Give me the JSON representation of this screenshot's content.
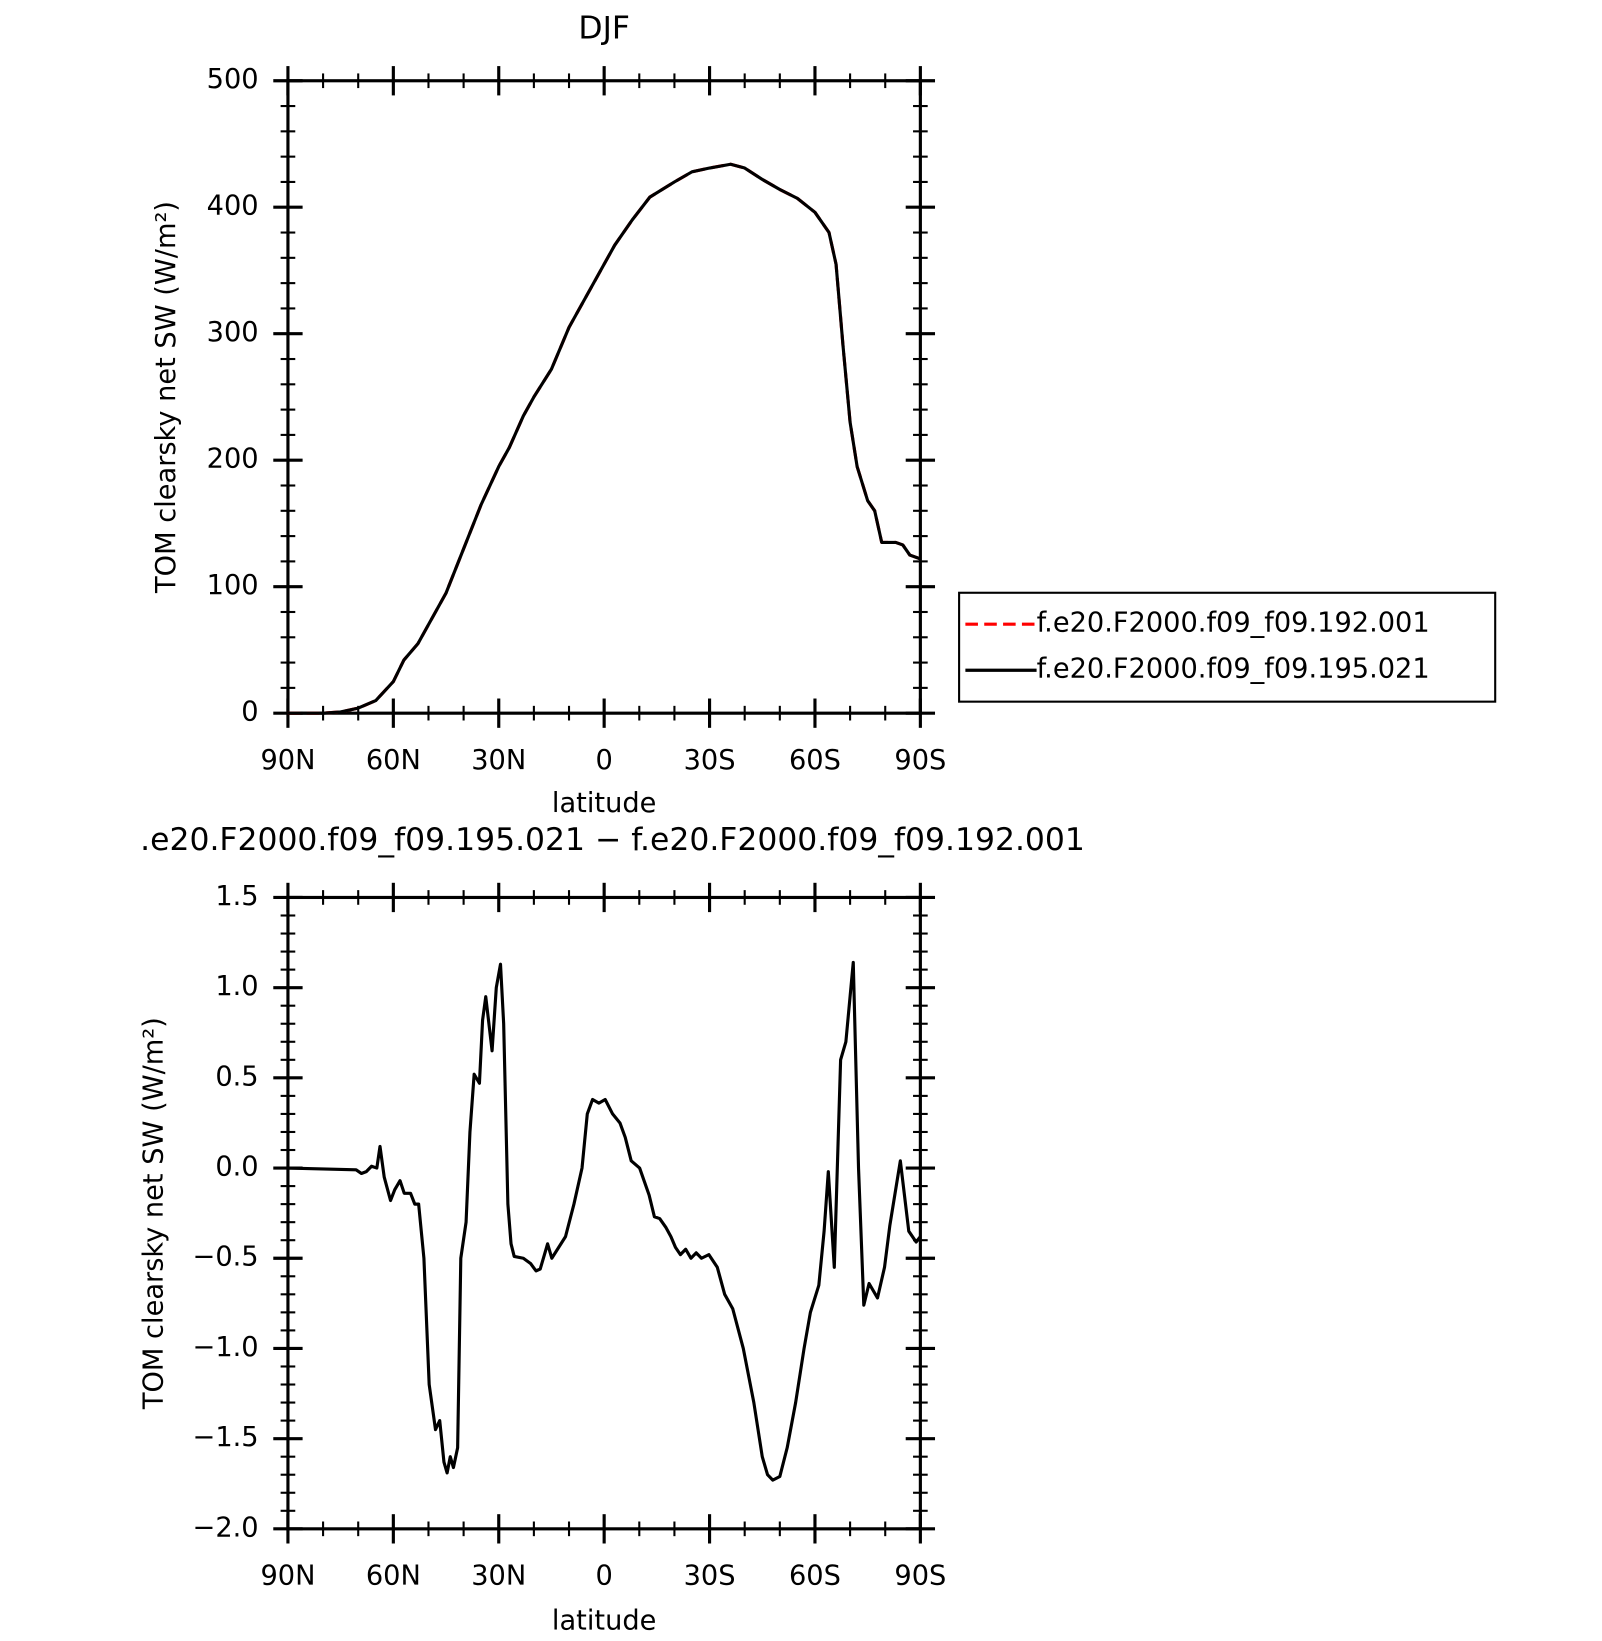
{
  "chart_data": [
    {
      "type": "line",
      "title": "DJF",
      "xlabel": "latitude",
      "ylabel": "TOM clearsky net SW (W/m²)",
      "x": [
        90,
        80,
        75,
        70,
        65,
        60,
        57,
        53,
        50,
        45,
        40,
        35,
        30,
        27,
        23,
        20,
        15,
        10,
        5,
        0,
        -3,
        -8,
        -13,
        -20,
        -25,
        -30,
        -36,
        -40,
        -45,
        -50,
        -55,
        -60,
        -64,
        -66,
        -68,
        -70,
        -72,
        -75,
        -77,
        -79,
        -83,
        -85,
        -87,
        -90
      ],
      "series": [
        {
          "name": "f.e20.F2000.f09_f09.192.001",
          "color": "#ff0000",
          "linestyle": "dashed",
          "values": [
            0,
            0,
            1,
            4,
            10,
            25,
            42,
            55,
            70,
            95,
            130,
            165,
            195,
            210,
            235,
            250,
            272,
            305,
            330,
            355,
            370,
            390,
            408,
            420,
            428,
            431,
            434,
            431,
            422,
            414,
            407,
            396,
            380,
            355,
            290,
            230,
            195,
            168,
            160,
            135,
            135,
            133,
            125,
            122
          ]
        },
        {
          "name": "f.e20.F2000.f09_f09.195.021",
          "color": "#000000",
          "linestyle": "solid",
          "values": [
            0,
            0,
            1,
            4,
            10,
            25,
            42,
            55,
            70,
            95,
            130,
            165,
            195,
            210,
            235,
            250,
            272,
            305,
            330,
            355,
            370,
            390,
            408,
            420,
            428,
            431,
            434,
            431,
            422,
            414,
            407,
            396,
            380,
            355,
            290,
            230,
            195,
            168,
            160,
            135,
            135,
            133,
            125,
            122
          ]
        }
      ],
      "xlim": [
        90,
        -90
      ],
      "xticks": [
        {
          "value": 90,
          "label": "90N"
        },
        {
          "value": 60,
          "label": "60N"
        },
        {
          "value": 30,
          "label": "30N"
        },
        0,
        {
          "value": -30,
          "label": "30S"
        },
        {
          "value": -60,
          "label": "60S"
        },
        {
          "value": -90,
          "label": "90S"
        }
      ],
      "ylim": [
        0,
        500
      ],
      "yticks": [
        0,
        100,
        200,
        300,
        400,
        500
      ],
      "legend": "right"
    },
    {
      "type": "line",
      "title": ".e20.F2000.f09_f09.195.021 − f.e20.F2000.f09_f09.192.001",
      "xlabel": "latitude",
      "ylabel": "TOM clearsky net SW (W/m²)",
      "x": [
        90,
        70.6,
        69.1,
        67.7,
        66.2,
        64.7,
        63.8,
        62.6,
        60.8,
        59.6,
        58.1,
        56.9,
        55.1,
        53.9,
        52.8,
        51.3,
        49.8,
        48,
        46.8,
        45.6,
        44.7,
        43.8,
        42.9,
        41.7,
        40.8,
        39.3,
        38.2,
        37,
        35.5,
        34.6,
        33.7,
        31.9,
        30.7,
        29.5,
        28.6,
        27.4,
        26.5,
        25.6,
        23,
        20.9,
        19.4,
        18.2,
        17,
        16.1,
        14.9,
        11,
        8.6,
        6.3,
        4.8,
        3.3,
        1.5,
        -0.3,
        -2.4,
        -4.5,
        -6,
        -7.7,
        -10.1,
        -12.8,
        -14.3,
        -15.8,
        -17.6,
        -19,
        -20.3,
        -21.7,
        -23.2,
        -24.7,
        -26.2,
        -27.7,
        -29.8,
        -32.2,
        -34.3,
        -36.6,
        -39.6,
        -42.6,
        -45,
        -46.5,
        -48,
        -50,
        -52.1,
        -54.5,
        -56.9,
        -58.7,
        -61.1,
        -62.6,
        -63.8,
        -65.5,
        -67.3,
        -68.8,
        -70.9,
        -72.4,
        -73.9,
        -75.4,
        -77.8,
        -79.8,
        -81.3,
        -84.3,
        -86.7,
        -88.8,
        -90
      ],
      "values": [
        0,
        -0.01,
        -0.03,
        -0.02,
        0.01,
        0,
        0.12,
        -0.05,
        -0.18,
        -0.12,
        -0.07,
        -0.14,
        -0.14,
        -0.2,
        -0.2,
        -0.5,
        -1.2,
        -1.45,
        -1.4,
        -1.63,
        -1.69,
        -1.6,
        -1.66,
        -1.55,
        -0.5,
        -0.3,
        0.2,
        0.52,
        0.47,
        0.82,
        0.95,
        0.65,
        1.0,
        1.13,
        0.8,
        -0.2,
        -0.42,
        -0.49,
        -0.5,
        -0.53,
        -0.57,
        -0.56,
        -0.48,
        -0.42,
        -0.5,
        -0.38,
        -0.2,
        0,
        0.3,
        0.38,
        0.36,
        0.38,
        0.3,
        0.25,
        0.17,
        0.04,
        0,
        -0.15,
        -0.27,
        -0.28,
        -0.33,
        -0.38,
        -0.44,
        -0.48,
        -0.45,
        -0.5,
        -0.47,
        -0.5,
        -0.48,
        -0.55,
        -0.7,
        -0.78,
        -1.0,
        -1.3,
        -1.6,
        -1.7,
        -1.73,
        -1.71,
        -1.55,
        -1.3,
        -1.0,
        -0.8,
        -0.65,
        -0.35,
        -0.02,
        -0.55,
        0.6,
        0.7,
        1.14,
        0,
        -0.76,
        -0.64,
        -0.72,
        -0.55,
        -0.32,
        0.04,
        -0.35,
        -0.41,
        -0.38
      ],
      "color": "#000000",
      "xlim": [
        90,
        -90
      ],
      "xticks": [
        {
          "value": 90,
          "label": "90N"
        },
        {
          "value": 60,
          "label": "60N"
        },
        {
          "value": 30,
          "label": "30N"
        },
        0,
        {
          "value": -30,
          "label": "30S"
        },
        {
          "value": -60,
          "label": "60S"
        },
        {
          "value": -90,
          "label": "90S"
        }
      ],
      "ylim": [
        -2,
        1.5
      ],
      "yticks": [
        {
          "value": -2,
          "label": "−2.0"
        },
        {
          "value": -1.5,
          "label": "−1.5"
        },
        {
          "value": -1,
          "label": "−1.0"
        },
        {
          "value": -0.5,
          "label": "−0.5"
        },
        {
          "value": 0,
          "label": "0.0"
        },
        0.5,
        {
          "value": 1,
          "label": "1.0"
        },
        1.5
      ]
    }
  ]
}
